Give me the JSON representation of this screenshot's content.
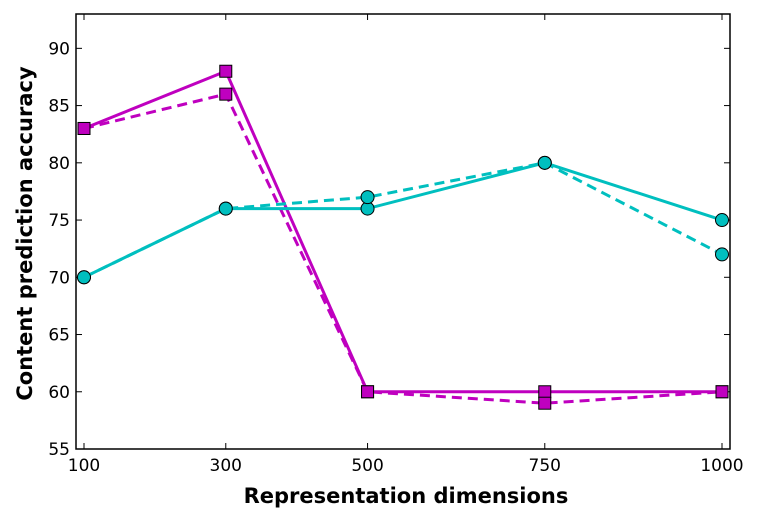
{
  "chart_data": {
    "type": "line",
    "title": "",
    "xlabel": "Representation dimensions",
    "ylabel": "Content prediction accuracy",
    "x": [
      100,
      300,
      500,
      750,
      1000
    ],
    "x_tick_labels": [
      "100",
      "300",
      "500",
      "750",
      "1000"
    ],
    "xlim": [
      100,
      1000
    ],
    "ylim": [
      55,
      93
    ],
    "y_ticks": [
      55,
      60,
      65,
      70,
      75,
      80,
      85,
      90
    ],
    "grid": false,
    "legend": "none",
    "series": [
      {
        "color": "#bf00bf",
        "style": "solid",
        "marker": "square",
        "values": [
          83,
          88,
          60,
          60,
          60
        ]
      },
      {
        "color": "#bf00bf",
        "style": "dashed",
        "marker": "square",
        "values": [
          83,
          86,
          60,
          59,
          60
        ]
      },
      {
        "color": "#00bfbf",
        "style": "solid",
        "marker": "circle",
        "values": [
          70,
          76,
          76,
          80,
          75
        ]
      },
      {
        "color": "#00bfbf",
        "style": "dashed",
        "marker": "circle",
        "values": [
          70,
          76,
          77,
          80,
          72
        ]
      }
    ]
  }
}
